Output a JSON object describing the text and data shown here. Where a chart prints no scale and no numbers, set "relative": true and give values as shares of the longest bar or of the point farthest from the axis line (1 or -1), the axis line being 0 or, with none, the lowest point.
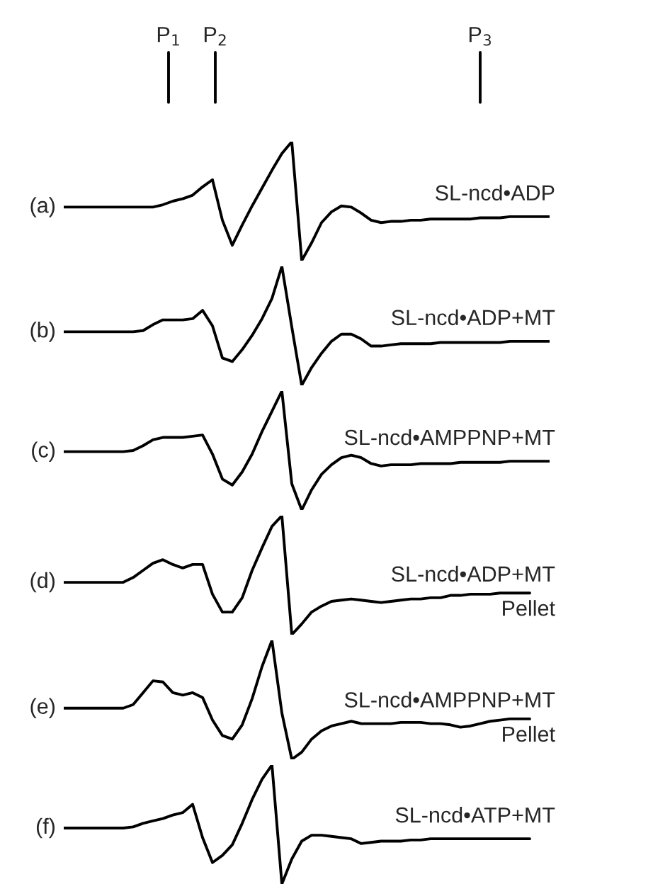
{
  "chart_data": [
    {
      "type": "line",
      "title": "(a)",
      "relative": true,
      "categories": [
        null,
        null,
        null,
        null,
        null,
        null,
        null,
        null,
        null,
        null,
        null,
        null,
        null,
        null,
        null,
        null,
        null,
        null,
        null,
        null,
        null,
        null,
        null,
        null,
        null,
        null,
        null,
        null,
        null,
        null,
        null,
        null,
        null,
        null,
        null,
        null,
        null,
        null,
        null,
        null,
        null,
        null,
        null,
        null,
        null,
        null,
        null,
        null,
        null,
        null
      ],
      "annotations": [
        "P$_{1}$",
        "P$_{2}$",
        "P$_{3}$"
      ],
      "series": [
        {
          "name": "SL-ncd•ADP",
          "color": "#000000",
          "values": [
            0.45,
            0.45,
            0.45,
            0.45,
            0.45,
            0.45,
            0.45,
            0.45,
            0.45,
            0.45,
            0.47,
            0.5,
            0.52,
            0.55,
            0.62,
            0.68,
            0.34,
            0.13,
            0.3,
            0.46,
            0.61,
            0.76,
            0.9,
            1.0,
            0.0,
            0.15,
            0.32,
            0.41,
            0.46,
            0.45,
            0.4,
            0.34,
            0.32,
            0.33,
            0.33,
            0.34,
            0.34,
            0.35,
            0.35,
            0.35,
            0.35,
            0.35,
            0.36,
            0.36,
            0.36,
            0.37,
            0.37,
            0.37,
            0.37,
            0.37
          ]
        }
      ]
    },
    {
      "type": "line",
      "title": "(b)",
      "relative": true,
      "categories": [
        null,
        null,
        null,
        null,
        null,
        null,
        null,
        null,
        null,
        null,
        null,
        null,
        null,
        null,
        null,
        null,
        null,
        null,
        null,
        null,
        null,
        null,
        null,
        null,
        null,
        null,
        null,
        null,
        null,
        null,
        null,
        null,
        null,
        null,
        null,
        null,
        null,
        null,
        null,
        null,
        null,
        null,
        null,
        null,
        null,
        null,
        null,
        null,
        null,
        null
      ],
      "series": [
        {
          "name": "SL-ncd•ADP+MT",
          "color": "#000000",
          "values": [
            0.45,
            0.45,
            0.45,
            0.45,
            0.45,
            0.45,
            0.45,
            0.45,
            0.46,
            0.51,
            0.55,
            0.55,
            0.55,
            0.56,
            0.63,
            0.5,
            0.23,
            0.2,
            0.3,
            0.42,
            0.56,
            0.73,
            1.0,
            0.49,
            0.0,
            0.15,
            0.27,
            0.37,
            0.43,
            0.43,
            0.39,
            0.33,
            0.33,
            0.34,
            0.35,
            0.35,
            0.35,
            0.35,
            0.36,
            0.36,
            0.36,
            0.36,
            0.36,
            0.36,
            0.36,
            0.37,
            0.37,
            0.37,
            0.37,
            0.37
          ]
        }
      ]
    },
    {
      "type": "line",
      "title": "(c)",
      "relative": true,
      "categories": [
        null,
        null,
        null,
        null,
        null,
        null,
        null,
        null,
        null,
        null,
        null,
        null,
        null,
        null,
        null,
        null,
        null,
        null,
        null,
        null,
        null,
        null,
        null,
        null,
        null,
        null,
        null,
        null,
        null,
        null,
        null,
        null,
        null,
        null,
        null,
        null,
        null,
        null,
        null,
        null,
        null,
        null,
        null,
        null,
        null,
        null,
        null,
        null,
        null,
        null
      ],
      "series": [
        {
          "name": "SL-ncd•AMPPNP+MT",
          "color": "#000000",
          "values": [
            0.49,
            0.49,
            0.49,
            0.49,
            0.49,
            0.49,
            0.49,
            0.5,
            0.54,
            0.59,
            0.61,
            0.61,
            0.61,
            0.62,
            0.63,
            0.47,
            0.26,
            0.21,
            0.32,
            0.47,
            0.66,
            0.83,
            1.0,
            0.22,
            0.0,
            0.17,
            0.3,
            0.38,
            0.44,
            0.46,
            0.44,
            0.39,
            0.37,
            0.38,
            0.38,
            0.38,
            0.39,
            0.39,
            0.39,
            0.39,
            0.4,
            0.4,
            0.4,
            0.4,
            0.4,
            0.41,
            0.41,
            0.41,
            0.41,
            0.41
          ]
        }
      ]
    },
    {
      "type": "line",
      "title": "(d)",
      "relative": true,
      "categories": [
        null,
        null,
        null,
        null,
        null,
        null,
        null,
        null,
        null,
        null,
        null,
        null,
        null,
        null,
        null,
        null,
        null,
        null,
        null,
        null,
        null,
        null,
        null,
        null,
        null,
        null,
        null,
        null,
        null,
        null,
        null,
        null,
        null,
        null,
        null,
        null,
        null,
        null,
        null,
        null,
        null,
        null,
        null,
        null,
        null,
        null,
        null,
        null,
        null,
        null
      ],
      "series": [
        {
          "name": "SL-ncd•ADP+MT\nPellet",
          "color": "#000000",
          "values": [
            0.44,
            0.44,
            0.44,
            0.44,
            0.44,
            0.44,
            0.44,
            0.48,
            0.54,
            0.6,
            0.63,
            0.59,
            0.56,
            0.59,
            0.59,
            0.34,
            0.19,
            0.19,
            0.31,
            0.54,
            0.73,
            0.91,
            1.0,
            0.0,
            0.09,
            0.19,
            0.24,
            0.28,
            0.29,
            0.3,
            0.29,
            0.28,
            0.27,
            0.28,
            0.29,
            0.3,
            0.3,
            0.31,
            0.31,
            0.33,
            0.33,
            0.34,
            0.34,
            0.34,
            0.35,
            0.35,
            0.35,
            0.35,
            null,
            null
          ]
        }
      ]
    },
    {
      "type": "line",
      "title": "(e)",
      "relative": true,
      "categories": [
        null,
        null,
        null,
        null,
        null,
        null,
        null,
        null,
        null,
        null,
        null,
        null,
        null,
        null,
        null,
        null,
        null,
        null,
        null,
        null,
        null,
        null,
        null,
        null,
        null,
        null,
        null,
        null,
        null,
        null,
        null,
        null,
        null,
        null,
        null,
        null,
        null,
        null,
        null,
        null,
        null,
        null,
        null,
        null,
        null,
        null,
        null,
        null,
        null,
        null
      ],
      "series": [
        {
          "name": "SL-ncd•AMPPNP+MT\nPellet",
          "color": "#000000",
          "values": [
            0.43,
            0.43,
            0.43,
            0.43,
            0.43,
            0.43,
            0.43,
            0.46,
            0.56,
            0.66,
            0.65,
            0.56,
            0.54,
            0.56,
            0.52,
            0.33,
            0.2,
            0.17,
            0.29,
            0.51,
            0.78,
            1.0,
            0.39,
            0.0,
            0.06,
            0.17,
            0.24,
            0.28,
            0.3,
            0.32,
            0.3,
            0.3,
            0.3,
            0.3,
            0.31,
            0.31,
            0.31,
            0.3,
            0.3,
            0.29,
            0.27,
            0.28,
            0.3,
            0.32,
            0.33,
            0.34,
            0.34,
            0.34,
            null,
            null
          ]
        }
      ]
    },
    {
      "type": "line",
      "title": "(f)",
      "relative": true,
      "categories": [
        null,
        null,
        null,
        null,
        null,
        null,
        null,
        null,
        null,
        null,
        null,
        null,
        null,
        null,
        null,
        null,
        null,
        null,
        null,
        null,
        null,
        null,
        null,
        null,
        null,
        null,
        null,
        null,
        null,
        null,
        null,
        null,
        null,
        null,
        null,
        null,
        null,
        null,
        null,
        null,
        null,
        null,
        null,
        null,
        null,
        null,
        null,
        null,
        null,
        null
      ],
      "series": [
        {
          "name": "SL-ncd•ATP+MT",
          "color": "#000000",
          "values": [
            0.47,
            0.47,
            0.47,
            0.47,
            0.47,
            0.47,
            0.47,
            0.48,
            0.51,
            0.53,
            0.55,
            0.58,
            0.6,
            0.67,
            0.39,
            0.18,
            0.24,
            0.33,
            0.51,
            0.71,
            0.88,
            1.0,
            0.0,
            0.21,
            0.36,
            0.41,
            0.41,
            0.4,
            0.39,
            0.38,
            0.34,
            0.35,
            0.36,
            0.36,
            0.36,
            0.37,
            0.37,
            0.38,
            0.38,
            0.38,
            0.38,
            0.38,
            0.38,
            0.38,
            0.38,
            0.38,
            0.38,
            0.38,
            null,
            null
          ]
        }
      ]
    }
  ]
}
